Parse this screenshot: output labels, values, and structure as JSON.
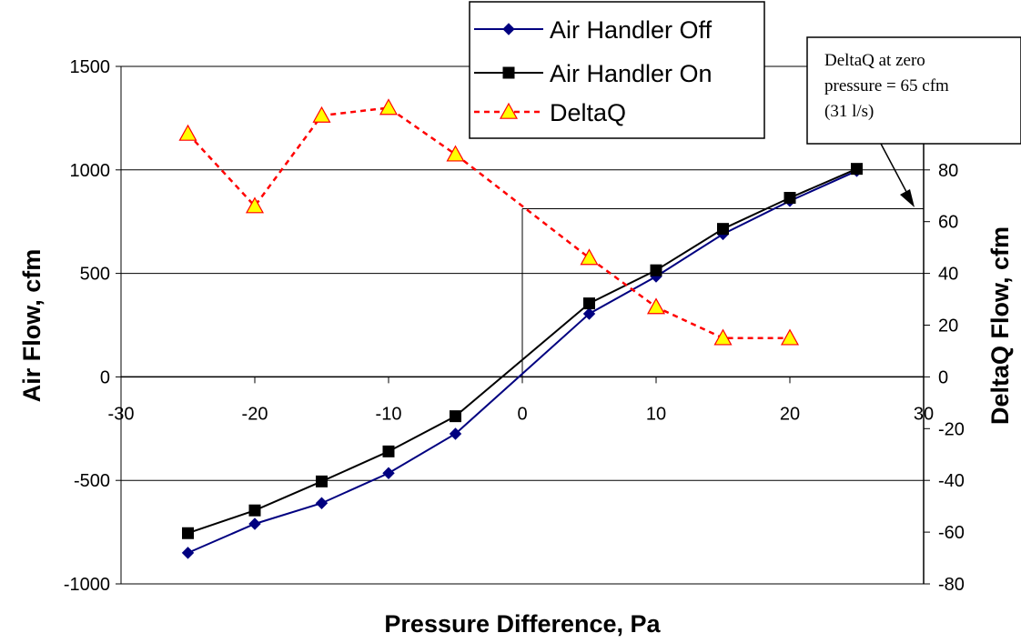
{
  "chart_data": {
    "type": "line",
    "xlabel": "Pressure Difference, Pa",
    "ylabel": "Air Flow, cfm",
    "y2label": "DeltaQ Flow, cfm",
    "xlim": [
      -30,
      30
    ],
    "ylim": [
      -1000,
      1500
    ],
    "y2lim": [
      -80,
      120
    ],
    "x_ticks": [
      "-30",
      "-20",
      "-10",
      "0",
      "10",
      "20",
      "30"
    ],
    "y_ticks": [
      "-1000",
      "-500",
      "0",
      "500",
      "1000",
      "1500"
    ],
    "y2_ticks": [
      "-80",
      "-60",
      "-40",
      "-20",
      "0",
      "20",
      "40",
      "60",
      "80"
    ],
    "grid": true,
    "legend": "top-center",
    "series": [
      {
        "name": "Air Handler Off",
        "axis": "left",
        "color": "#000080",
        "marker": "diamond",
        "x": [
          -25,
          -20,
          -15,
          -10,
          -5,
          5,
          10,
          15,
          20,
          25
        ],
        "y": [
          -850,
          -710,
          -610,
          -465,
          -275,
          305,
          485,
          690,
          850,
          995
        ]
      },
      {
        "name": "Air Handler On",
        "axis": "left",
        "color": "#000000",
        "marker": "square",
        "x": [
          -25,
          -20,
          -15,
          -10,
          -5,
          5,
          10,
          15,
          20,
          25
        ],
        "y": [
          -755,
          -645,
          -505,
          -360,
          -190,
          355,
          515,
          715,
          865,
          1005
        ]
      },
      {
        "name": "DeltaQ",
        "axis": "right",
        "color": "#ff0000",
        "marker": "triangle",
        "marker_fill": "#ffff00",
        "dashed": true,
        "x": [
          -25,
          -20,
          -15,
          -10,
          -5,
          5,
          10,
          15,
          20
        ],
        "y": [
          94,
          66,
          101,
          104,
          86,
          46,
          27,
          15,
          15
        ]
      }
    ],
    "annotation": {
      "lines": [
        "DeltaQ at zero",
        "pressure = 65 cfm",
        "(31 l/s)"
      ],
      "points_to": {
        "x": 0,
        "y2": 65
      }
    }
  }
}
